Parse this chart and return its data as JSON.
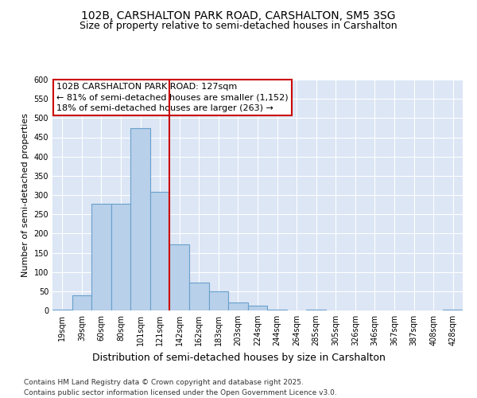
{
  "title1": "102B, CARSHALTON PARK ROAD, CARSHALTON, SM5 3SG",
  "title2": "Size of property relative to semi-detached houses in Carshalton",
  "xlabel": "Distribution of semi-detached houses by size in Carshalton",
  "ylabel": "Number of semi-detached properties",
  "categories": [
    "19sqm",
    "39sqm",
    "60sqm",
    "80sqm",
    "101sqm",
    "121sqm",
    "142sqm",
    "162sqm",
    "183sqm",
    "203sqm",
    "224sqm",
    "244sqm",
    "264sqm",
    "285sqm",
    "305sqm",
    "326sqm",
    "346sqm",
    "367sqm",
    "387sqm",
    "408sqm",
    "428sqm"
  ],
  "values": [
    3,
    40,
    278,
    278,
    473,
    308,
    172,
    73,
    50,
    20,
    13,
    3,
    0,
    2,
    0,
    0,
    0,
    0,
    0,
    0,
    2
  ],
  "bar_color": "#b8d0ea",
  "bar_edge_color": "#6aa0cc",
  "vline_color": "#cc0000",
  "box_edge_color": "#cc0000",
  "highlight_label": "102B CARSHALTON PARK ROAD: 127sqm",
  "annotation1": "← 81% of semi-detached houses are smaller (1,152)",
  "annotation2": "18% of semi-detached houses are larger (263) →",
  "ylim": [
    0,
    600
  ],
  "yticks": [
    0,
    50,
    100,
    150,
    200,
    250,
    300,
    350,
    400,
    450,
    500,
    550,
    600
  ],
  "background_color": "#dce6f5",
  "grid_color": "#ffffff",
  "footer1": "Contains HM Land Registry data © Crown copyright and database right 2025.",
  "footer2": "Contains public sector information licensed under the Open Government Licence v3.0.",
  "title1_fontsize": 10,
  "title2_fontsize": 9,
  "xlabel_fontsize": 9,
  "ylabel_fontsize": 8,
  "tick_fontsize": 7,
  "annotation_fontsize": 8,
  "footer_fontsize": 6.5,
  "vline_position": 5.5
}
